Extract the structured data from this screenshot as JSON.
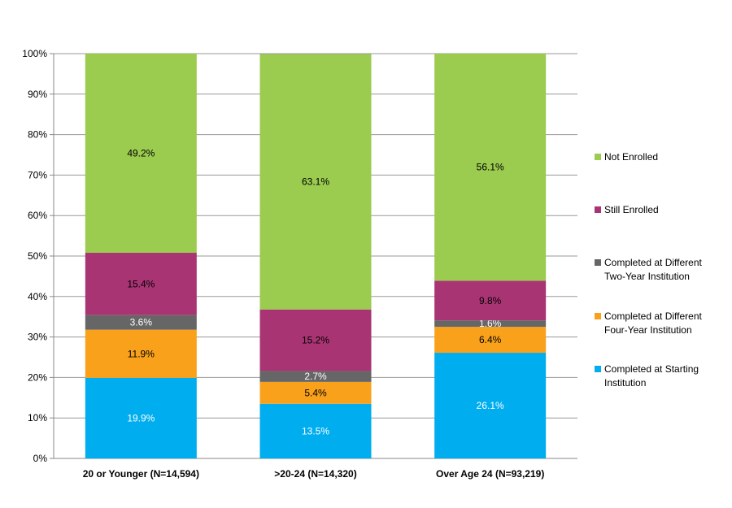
{
  "chart_data": {
    "type": "bar",
    "stacked": true,
    "title": "",
    "xlabel": "",
    "ylabel": "",
    "ylim": [
      0,
      100
    ],
    "yticks": [
      "0%",
      "10%",
      "20%",
      "30%",
      "40%",
      "50%",
      "60%",
      "70%",
      "80%",
      "90%",
      "100%"
    ],
    "grid": true,
    "legend_position": "right",
    "categories": [
      "20 or Younger (N=14,594)",
      ">20-24   (N=14,320)",
      "Over Age 24   (N=93,219)"
    ],
    "series": [
      {
        "name": "Completed at Starting Institution",
        "legend_lines": [
          "Completed at Starting",
          "Institution"
        ],
        "color": "#00ADEF",
        "label_color": "#ffffff",
        "values": [
          19.9,
          13.5,
          26.1
        ]
      },
      {
        "name": "Completed at Different Four-Year Institution",
        "legend_lines": [
          "Completed at Different",
          "Four-Year Institution"
        ],
        "color": "#F9A11B",
        "label_color": "#000000",
        "values": [
          11.9,
          5.4,
          6.4
        ]
      },
      {
        "name": "Completed at Different Two-Year Institution",
        "legend_lines": [
          "Completed at Different",
          "Two-Year Institution"
        ],
        "color": "#666666",
        "label_color": "#ffffff",
        "values": [
          3.6,
          2.7,
          1.6
        ]
      },
      {
        "name": "Still Enrolled",
        "legend_lines": [
          "Still Enrolled"
        ],
        "color": "#A93474",
        "label_color": "#000000",
        "values": [
          15.4,
          15.2,
          9.8
        ]
      },
      {
        "name": "Not Enrolled",
        "legend_lines": [
          "Not Enrolled"
        ],
        "color": "#9BCB4F",
        "label_color": "#000000",
        "values": [
          49.2,
          63.1,
          56.1
        ]
      }
    ]
  }
}
